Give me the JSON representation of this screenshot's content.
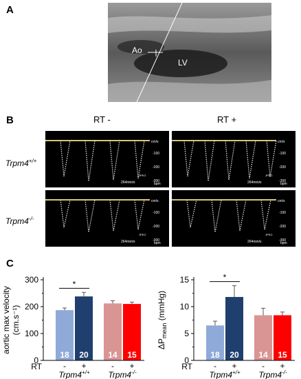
{
  "panel_a": {
    "letter": "A",
    "labels": {
      "ao": "Ao",
      "lv": "LV"
    }
  },
  "panel_b": {
    "letter": "B",
    "columns": [
      "RT -",
      "RT +"
    ],
    "rows": [
      {
        "name": "Trpm4",
        "sup": "+/+"
      },
      {
        "name": "Trpm4",
        "sup": "-/-"
      }
    ],
    "scale_unit": "cm/s",
    "scale_ticks": [
      "-100",
      "-200",
      "-300"
    ],
    "speed_label": "264mm/s",
    "bpm_label": "bpm",
    "jpeg_label": "JPEG"
  },
  "panel_c": {
    "letter": "C",
    "rt_label": "RT",
    "rt_ticks": [
      "-",
      "+",
      "-",
      "+"
    ],
    "groups": [
      {
        "name": "Trpm4",
        "sup": "+/+"
      },
      {
        "name": "Trpm4",
        "sup": "-/-"
      }
    ],
    "colors": [
      "#8faad8",
      "#1f3f6e",
      "#d99594",
      "#ff0000"
    ]
  },
  "chart_data": [
    {
      "type": "bar",
      "ylabel": "aortic max velocity (cm.s⁻¹)",
      "ylim": [
        0,
        300
      ],
      "yticks": [
        "0",
        "100",
        "200",
        "300"
      ],
      "categories": [
        "-",
        "+",
        "-",
        "+"
      ],
      "groups": [
        "Trpm4+/+",
        "Trpm4-/-"
      ],
      "values": [
        187,
        238,
        212,
        210
      ],
      "errors": [
        8,
        15,
        10,
        7
      ],
      "n": [
        "18",
        "20",
        "14",
        "15"
      ],
      "significance": {
        "between": [
          0,
          1
        ],
        "label": "*"
      }
    },
    {
      "type": "bar",
      "ylabel": "ΔP",
      "ylabel_sub": "mean",
      "ylabel_unit": " (mmHg)",
      "ylim": [
        0,
        15
      ],
      "yticks": [
        "0",
        "5",
        "10",
        "15"
      ],
      "categories": [
        "-",
        "+",
        "-",
        "+"
      ],
      "groups": [
        "Trpm4+/+",
        "Trpm4-/-"
      ],
      "values": [
        6.5,
        11.8,
        8.4,
        8.4
      ],
      "errors": [
        0.8,
        2.1,
        1.3,
        0.6
      ],
      "n": [
        "18",
        "20",
        "14",
        "15"
      ],
      "significance": {
        "between": [
          0,
          1
        ],
        "label": "*"
      }
    }
  ]
}
